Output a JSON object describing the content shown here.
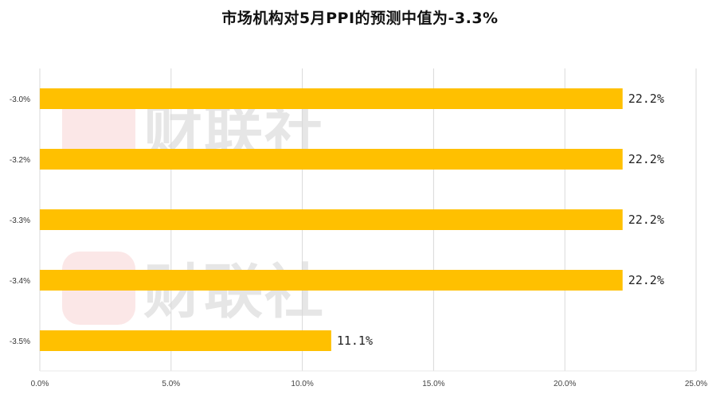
{
  "chart_data": {
    "type": "bar",
    "orientation": "horizontal",
    "title": "市场机构对5月PPI的预测中值为-3.3%",
    "categories": [
      "-3.0%",
      "-3.2%",
      "-3.3%",
      "-3.4%",
      "-3.5%"
    ],
    "values": [
      22.2,
      22.2,
      22.2,
      22.2,
      11.1
    ],
    "data_labels": [
      "22.2%",
      "22.2%",
      "22.2%",
      "22.2%",
      "11.1%"
    ],
    "xlim": [
      0,
      25
    ],
    "x_ticks": [
      "0.0%",
      "5.0%",
      "10.0%",
      "15.0%",
      "20.0%",
      "25.0%"
    ],
    "x_tick_values": [
      0,
      5,
      10,
      15,
      20,
      25
    ],
    "grid": "vertical",
    "legend": "none",
    "bar_color": "#FFC000",
    "grid_color": "#d9d9d9"
  },
  "watermark": {
    "text": "财联社",
    "color": "#f8d3d3",
    "text_color": "#e6e6e6"
  }
}
